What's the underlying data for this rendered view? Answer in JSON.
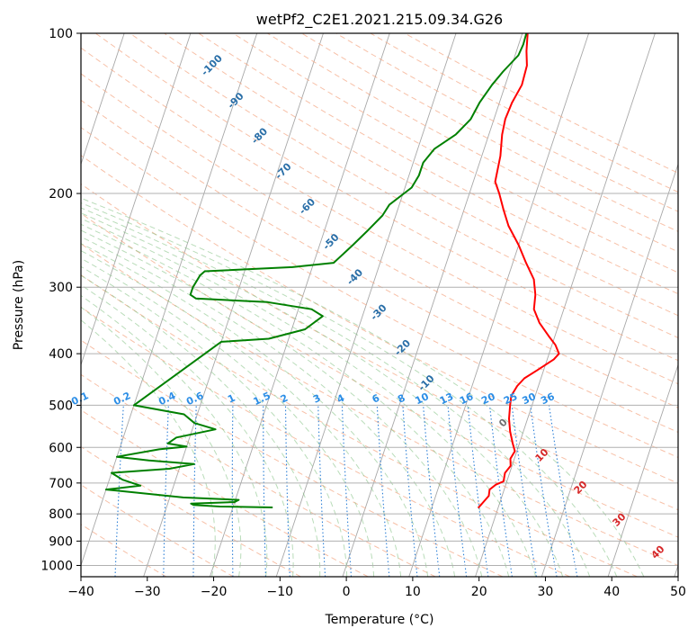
{
  "chart_data": {
    "type": "line",
    "title": "wetPf2_C2E1.2021.215.09.34.G26",
    "xlabel": "Temperature (°C)",
    "ylabel": "Pressure (hPa)",
    "xlim": [
      -40,
      50
    ],
    "ylim": [
      1050,
      100
    ],
    "y_scale": "log",
    "grid": true,
    "x_ticks": [
      -40,
      -30,
      -20,
      -10,
      0,
      10,
      20,
      30,
      40,
      50
    ],
    "y_ticks": [
      100,
      200,
      300,
      400,
      500,
      600,
      700,
      800,
      900,
      1000
    ],
    "x_tick_labels": [
      "−40",
      "−30",
      "−20",
      "−10",
      "0",
      "10",
      "20",
      "30",
      "40",
      "50"
    ],
    "y_tick_labels": [
      "100",
      "200",
      "300",
      "400",
      "500",
      "600",
      "700",
      "800",
      "900",
      "1000"
    ],
    "series": [
      {
        "color": "#ff0000",
        "points": [
          [
            17.0,
            780
          ],
          [
            17.5,
            760
          ],
          [
            18.0,
            740
          ],
          [
            17.8,
            720
          ],
          [
            18.5,
            705
          ],
          [
            19.5,
            695
          ],
          [
            19.3,
            670
          ],
          [
            19.8,
            650
          ],
          [
            19.4,
            630
          ],
          [
            19.7,
            610
          ],
          [
            19.0,
            590
          ],
          [
            18.0,
            560
          ],
          [
            17.2,
            530
          ],
          [
            16.7,
            500
          ],
          [
            16.4,
            480
          ],
          [
            16.8,
            460
          ],
          [
            17.5,
            445
          ],
          [
            19.0,
            430
          ],
          [
            21.0,
            410
          ],
          [
            21.5,
            400
          ],
          [
            20.5,
            385
          ],
          [
            19.0,
            370
          ],
          [
            17.0,
            350
          ],
          [
            15.5,
            330
          ],
          [
            15.0,
            310
          ],
          [
            14.0,
            290
          ],
          [
            12.0,
            270
          ],
          [
            10.0,
            250
          ],
          [
            7.5,
            230
          ],
          [
            6.0,
            215
          ],
          [
            4.5,
            200
          ],
          [
            3.3,
            190
          ],
          [
            2.8,
            170
          ],
          [
            2.0,
            155
          ],
          [
            1.7,
            145
          ],
          [
            1.9,
            135
          ],
          [
            2.5,
            125
          ],
          [
            2.3,
            115
          ],
          [
            1.5,
            108
          ],
          [
            0.8,
            100
          ]
        ]
      },
      {
        "color": "#008000",
        "points": [
          [
            -14,
            778
          ],
          [
            -22,
            775
          ],
          [
            -26,
            770
          ],
          [
            -26.5,
            765
          ],
          [
            -20,
            760
          ],
          [
            -19.5,
            753
          ],
          [
            -28,
            745
          ],
          [
            -40,
            720
          ],
          [
            -35,
            708
          ],
          [
            -38,
            690
          ],
          [
            -40,
            670
          ],
          [
            -31.5,
            658
          ],
          [
            -28,
            645
          ],
          [
            -35,
            635
          ],
          [
            -40,
            625
          ],
          [
            -34,
            605
          ],
          [
            -30,
            598
          ],
          [
            -33,
            590
          ],
          [
            -32,
            575
          ],
          [
            -26.5,
            555
          ],
          [
            -30,
            540
          ],
          [
            -32,
            520
          ],
          [
            -40,
            500
          ],
          [
            -30,
            380
          ],
          [
            -23,
            375
          ],
          [
            -18,
            360
          ],
          [
            -16,
            340
          ],
          [
            -18,
            330
          ],
          [
            -25,
            320
          ],
          [
            -36,
            315
          ],
          [
            -37,
            310
          ],
          [
            -37,
            300
          ],
          [
            -36.5,
            285
          ],
          [
            -36,
            280
          ],
          [
            -23,
            275
          ],
          [
            -17,
            270
          ],
          [
            -15,
            250
          ],
          [
            -13.5,
            235
          ],
          [
            -12,
            220
          ],
          [
            -11.5,
            210
          ],
          [
            -9,
            195
          ],
          [
            -8.5,
            185
          ],
          [
            -8.5,
            175
          ],
          [
            -7.5,
            165
          ],
          [
            -5,
            155
          ],
          [
            -3.5,
            145
          ],
          [
            -3,
            135
          ],
          [
            -2,
            125
          ],
          [
            -1,
            118
          ],
          [
            0.5,
            110
          ],
          [
            0.7,
            105
          ],
          [
            0.6,
            100
          ]
        ]
      }
    ],
    "mixing_ratio_labels": [
      "0.1",
      "0.2",
      "0.4",
      "0.6",
      "1",
      "1.5",
      "2",
      "3",
      "4",
      "6",
      "8",
      "10",
      "13",
      "16",
      "20",
      "25",
      "30",
      "36"
    ],
    "dry_adiabat_labels": [
      "-100",
      "-90",
      "-80",
      "-70",
      "-60",
      "-50",
      "-40",
      "-30",
      "-20",
      "-10"
    ],
    "moist_adiabat_labels": [
      "0",
      "10",
      "20",
      "30",
      "40"
    ]
  }
}
